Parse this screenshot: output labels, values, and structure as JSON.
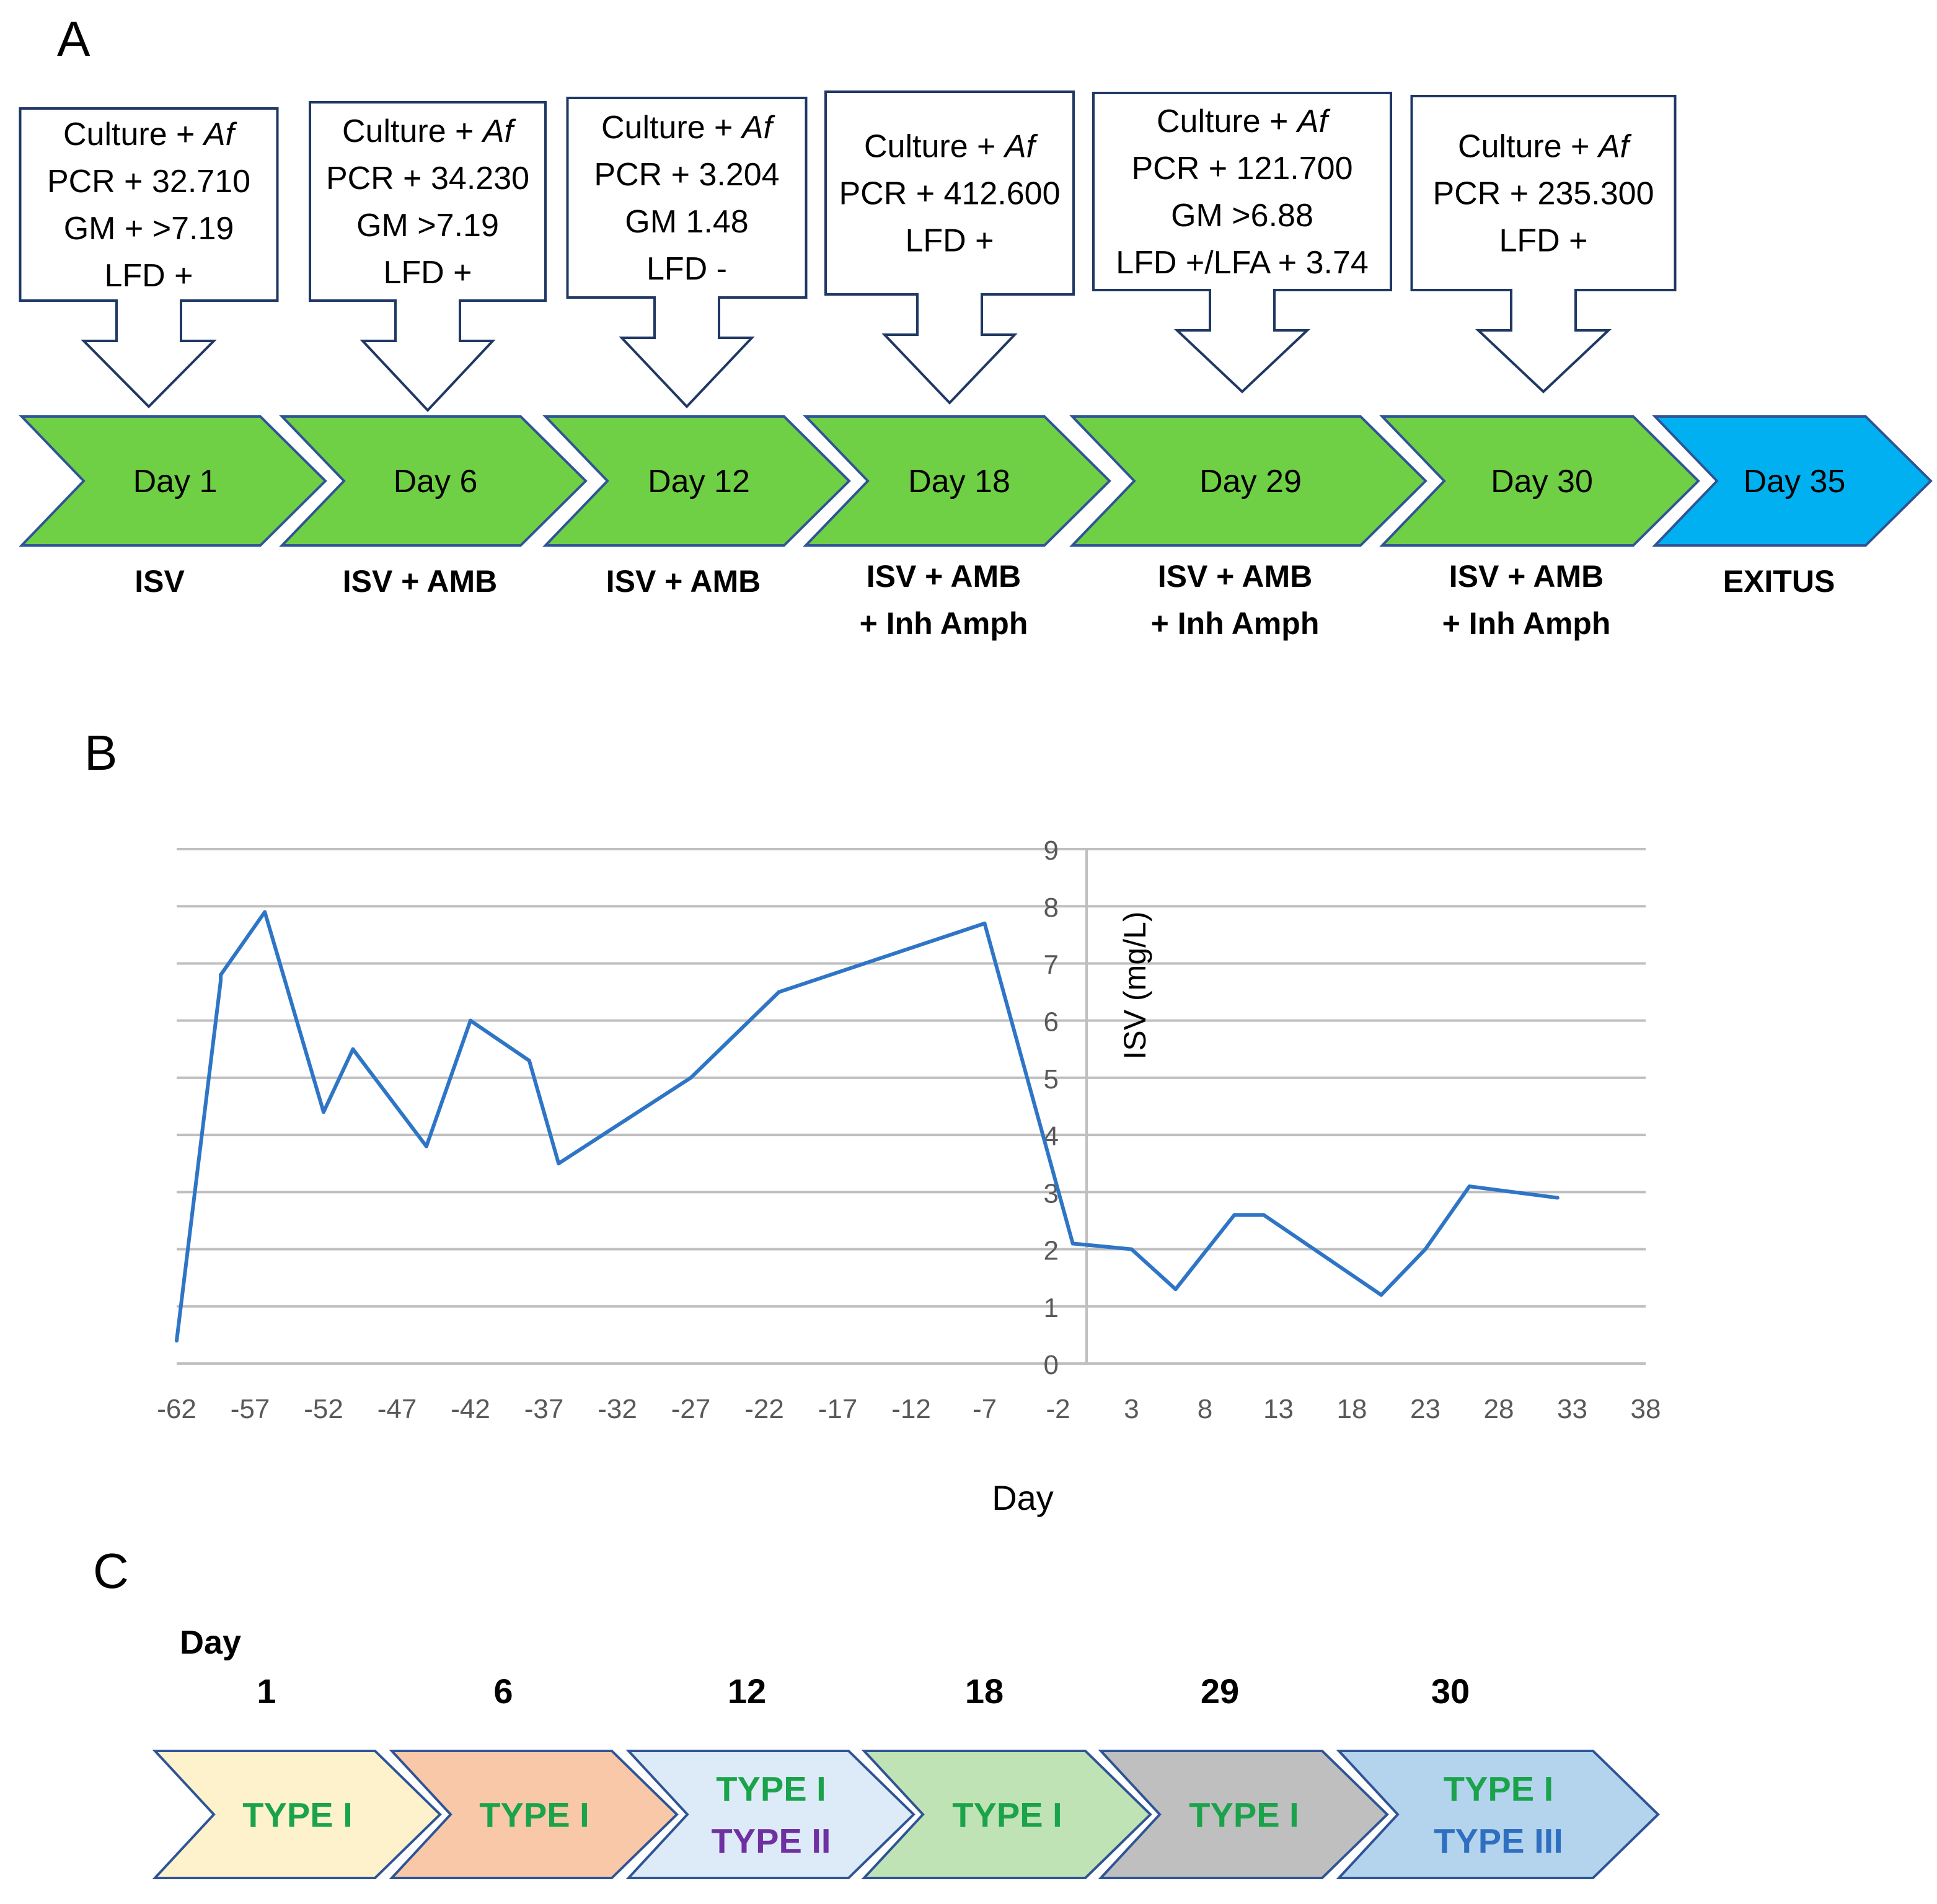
{
  "panel_labels": {
    "a": "A",
    "b": "B",
    "c": "C"
  },
  "timeline": [
    {
      "day": "Day 1",
      "treatment": [
        "ISV"
      ],
      "tests": [
        "Culture + |Af",
        "PCR + 32.710",
        "GM + >7.19",
        "LFD +"
      ],
      "color": "#6fcf45"
    },
    {
      "day": "Day 6",
      "treatment": [
        "ISV + AMB"
      ],
      "tests": [
        "Culture + |Af",
        "PCR + 34.230",
        "GM >7.19",
        "LFD +"
      ],
      "color": "#6fcf45"
    },
    {
      "day": "Day 12",
      "treatment": [
        "ISV + AMB"
      ],
      "tests": [
        "Culture + |Af",
        "PCR + 3.204",
        "GM 1.48",
        "LFD -"
      ],
      "color": "#6fcf45"
    },
    {
      "day": "Day 18",
      "treatment": [
        "ISV + AMB",
        "+ Inh Amph"
      ],
      "tests": [
        "Culture + |Af",
        "PCR + 412.600",
        "LFD +"
      ],
      "color": "#6fcf45"
    },
    {
      "day": "Day 29",
      "treatment": [
        "ISV + AMB",
        "+ Inh Amph"
      ],
      "tests": [
        "Culture + |Af",
        "PCR + 121.700",
        "GM >6.88",
        "LFD +/LFA + 3.74"
      ],
      "color": "#6fcf45"
    },
    {
      "day": "Day 30",
      "treatment": [
        "ISV + AMB",
        "+ Inh Amph"
      ],
      "tests": [
        "Culture + |Af",
        "PCR + 235.300",
        "LFD +"
      ],
      "color": "#6fcf45"
    },
    {
      "day": "Day 35",
      "treatment": [
        "EXITUS"
      ],
      "tests": [],
      "color": "#00b0f0"
    }
  ],
  "chart_data": {
    "type": "line",
    "title": "",
    "xlabel": "Day",
    "ylabel": "ISV (mg/L)",
    "xlim": [
      -62,
      38
    ],
    "ylim": [
      0,
      9
    ],
    "x_ticks": [
      -62,
      -57,
      -52,
      -47,
      -42,
      -37,
      -32,
      -27,
      -22,
      -17,
      -12,
      -7,
      -2,
      3,
      8,
      13,
      18,
      23,
      28,
      33,
      38
    ],
    "y_ticks": [
      0,
      1,
      2,
      3,
      4,
      5,
      6,
      7,
      8,
      9
    ],
    "grid": true,
    "line_color": "#2e75c6",
    "series": [
      {
        "name": "ISV",
        "x": [
          -62,
          -59,
          -59,
          -56,
          -52,
          -50,
          -45,
          -42,
          -38,
          -36,
          -27,
          -21,
          -7,
          -1,
          3,
          6,
          10,
          12,
          20,
          23,
          26,
          32
        ],
        "y": [
          0.4,
          6.7,
          6.8,
          7.9,
          4.4,
          5.5,
          3.8,
          6.0,
          5.3,
          3.5,
          5.0,
          6.5,
          7.7,
          2.1,
          2.0,
          1.3,
          2.6,
          2.6,
          1.2,
          2.0,
          3.1,
          2.9
        ]
      }
    ]
  },
  "types_panel": {
    "header": "Day",
    "days": [
      "1",
      "6",
      "12",
      "18",
      "29",
      "30"
    ],
    "chevrons": [
      {
        "fill": "#fdf2cc",
        "types": [
          {
            "label": "TYPE I",
            "color": "#1aa34a"
          }
        ]
      },
      {
        "fill": "#f9c8a8",
        "types": [
          {
            "label": "TYPE I",
            "color": "#1aa34a"
          }
        ]
      },
      {
        "fill": "#dcebf7",
        "types": [
          {
            "label": "TYPE I",
            "color": "#1aa34a"
          },
          {
            "label": "TYPE II",
            "color": "#7030a0"
          }
        ]
      },
      {
        "fill": "#bfe3b4",
        "types": [
          {
            "label": "TYPE I",
            "color": "#1aa34a"
          }
        ]
      },
      {
        "fill": "#bfbfbf",
        "types": [
          {
            "label": "TYPE I",
            "color": "#1aa34a"
          }
        ]
      },
      {
        "fill": "#b4d4ee",
        "types": [
          {
            "label": "TYPE I",
            "color": "#1aa34a"
          },
          {
            "label": "TYPE III",
            "color": "#2f6fc0"
          }
        ]
      }
    ]
  }
}
